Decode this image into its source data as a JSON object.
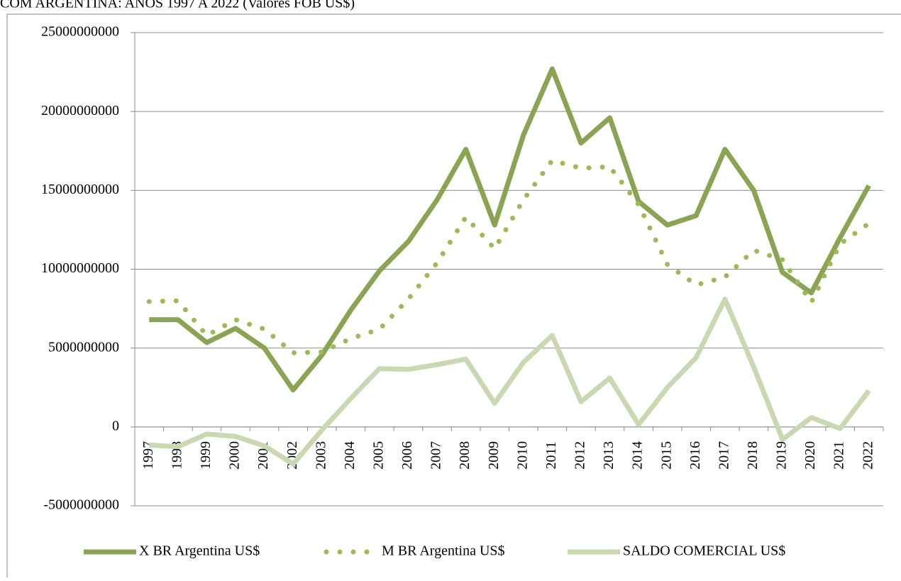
{
  "chart_data": {
    "type": "line",
    "title": "COM ARGENTINA: ANOS 1997 A 2022 (Valores FOB US$)",
    "categories": [
      "1997",
      "1998",
      "1999",
      "2000",
      "2001",
      "2002",
      "2003",
      "2004",
      "2005",
      "2006",
      "2007",
      "2008",
      "2009",
      "2010",
      "2011",
      "2012",
      "2013",
      "2014",
      "2015",
      "2016",
      "2017",
      "2018",
      "2019",
      "2020",
      "2021",
      "2022"
    ],
    "series": [
      {
        "name": "X BR Argentina US$",
        "color": "#8aa453",
        "line_style": "solid",
        "values": [
          6800000000,
          6800000000,
          5350000000,
          6250000000,
          5000000000,
          2350000000,
          4550000000,
          7400000000,
          9900000000,
          11750000000,
          14400000000,
          17600000000,
          12800000000,
          18500000000,
          22700000000,
          18000000000,
          19600000000,
          14300000000,
          12800000000,
          13400000000,
          17600000000,
          15000000000,
          9800000000,
          8500000000,
          12000000000,
          15300000000
        ]
      },
      {
        "name": "M BR Argentina US$",
        "color": "#9bbb59",
        "line_style": "dotted",
        "values": [
          7950000000,
          8000000000,
          5800000000,
          6800000000,
          6200000000,
          4700000000,
          4750000000,
          5600000000,
          6200000000,
          8100000000,
          10400000000,
          13300000000,
          11300000000,
          14400000000,
          16900000000,
          16400000000,
          16500000000,
          14100000000,
          10300000000,
          9000000000,
          9500000000,
          11200000000,
          10600000000,
          7900000000,
          11600000000,
          12900000000
        ]
      },
      {
        "name": "SALDO COMERCIAL US$",
        "color": "#c9d8b0",
        "line_style": "solid",
        "values": [
          -1150000000,
          -1250000000,
          -450000000,
          -600000000,
          -1200000000,
          -2350000000,
          -200000000,
          1800000000,
          3700000000,
          3650000000,
          3950000000,
          4300000000,
          1500000000,
          4100000000,
          5800000000,
          1600000000,
          3100000000,
          150000000,
          2500000000,
          4400000000,
          8100000000,
          3800000000,
          -800000000,
          600000000,
          -100000000,
          2300000000
        ]
      }
    ],
    "ylim": [
      -5000000000,
      25000000000
    ],
    "yticks": [
      -5000000000,
      0,
      5000000000,
      10000000000,
      15000000000,
      20000000000,
      25000000000
    ],
    "grid": true,
    "legend": "bottom"
  }
}
